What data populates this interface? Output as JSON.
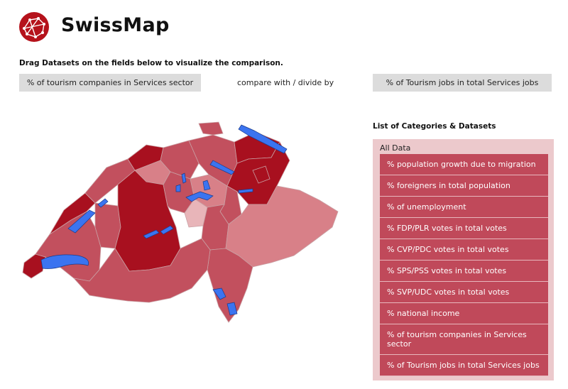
{
  "app": {
    "title": "SwissMap",
    "logo_icon": "swissmap-logo-icon"
  },
  "instruction": "Drag Datasets on the fields below to visualize the comparison.",
  "compare": {
    "left_field": "% of tourism companies in Services sector",
    "operator_label": "compare with / divide by",
    "right_field": "% of Tourism jobs in total Services jobs"
  },
  "categories": {
    "heading": "List of Categories & Datasets",
    "root": "All Data",
    "items": [
      "% population growth due to migration",
      "% foreigners in total population",
      "% of unemployment",
      "% FDP/PLR votes in total votes",
      "% CVP/PDC votes in total votes",
      "% SPS/PSS votes in total votes",
      "% SVP/UDC votes in total votes",
      "% national income",
      "% of tourism companies in Services sector",
      "% of Tourism jobs in total Services jobs"
    ]
  },
  "colors": {
    "dark_red": "#a8101f",
    "mid_red": "#c2505e",
    "light_red": "#d88088",
    "pale_pink": "#e8b5b9",
    "lake_blue": "#3b74f0",
    "panel_bg": "#ecc9cc",
    "item_bg": "#c0495a",
    "drop_bg": "#dcdcdc"
  }
}
